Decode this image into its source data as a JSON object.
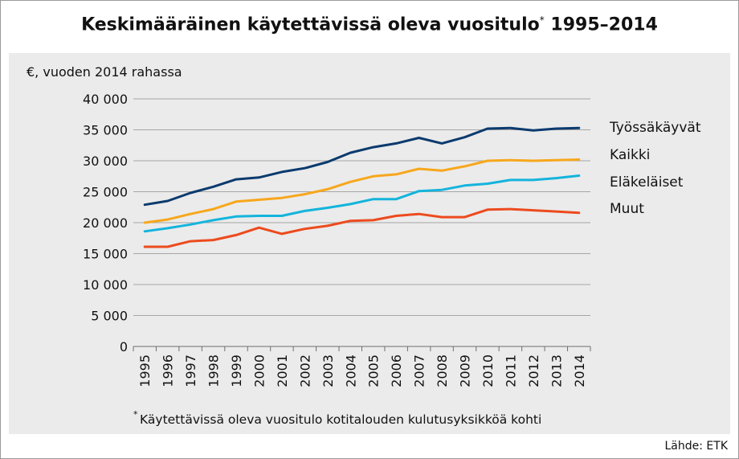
{
  "header": {
    "title": "Keskimääräinen käytettävissä oleva vuositulo",
    "title_marker": "*",
    "title_years": "1995–2014"
  },
  "source": "Lähde: ETK",
  "chart_data": {
    "type": "line",
    "ylabel": "€, vuoden 2014 rahassa",
    "ylim": [
      0,
      40000
    ],
    "yticks": [
      0,
      5000,
      10000,
      15000,
      20000,
      25000,
      30000,
      35000,
      40000
    ],
    "ytick_labels": [
      "0",
      "5 000",
      "10 000",
      "15 000",
      "20 000",
      "25 000",
      "30 000",
      "35 000",
      "40 000"
    ],
    "grid": true,
    "legend_position": "right",
    "x": [
      "1995",
      "1996",
      "1997",
      "1998",
      "1999",
      "2000",
      "2001",
      "2002",
      "2003",
      "2004",
      "2005",
      "2006",
      "2007",
      "2008",
      "2009",
      "2010",
      "2011",
      "2012",
      "2013",
      "2014"
    ],
    "series": [
      {
        "name": "Työssäkäyvät",
        "color": "#0b3a6e",
        "values": [
          22900,
          23500,
          24800,
          25800,
          27000,
          27300,
          28200,
          28800,
          29800,
          31300,
          32200,
          32800,
          33700,
          32800,
          33800,
          35200,
          35300,
          34900,
          35200,
          35300
        ]
      },
      {
        "name": "Kaikki",
        "color": "#f7a71c",
        "values": [
          20000,
          20500,
          21400,
          22200,
          23400,
          23700,
          24000,
          24600,
          25400,
          26600,
          27500,
          27800,
          28700,
          28400,
          29100,
          30000,
          30100,
          30000,
          30100,
          30200
        ]
      },
      {
        "name": "Eläkeläiset",
        "color": "#14b4dc",
        "values": [
          18600,
          19100,
          19700,
          20400,
          21000,
          21100,
          21100,
          21900,
          22400,
          23000,
          23800,
          23800,
          25100,
          25300,
          26000,
          26300,
          26900,
          26900,
          27200,
          27600
        ]
      },
      {
        "name": "Muut",
        "color": "#ec4b1e",
        "values": [
          16100,
          16100,
          17000,
          17200,
          18000,
          19200,
          18200,
          19000,
          19500,
          20300,
          20400,
          21100,
          21400,
          20900,
          20900,
          22100,
          22200,
          22000,
          21800,
          21600
        ]
      }
    ],
    "footnote_marker": "*",
    "footnote": "Käytettävissä oleva vuositulo kotitalouden kulutusyksikköä kohti"
  }
}
